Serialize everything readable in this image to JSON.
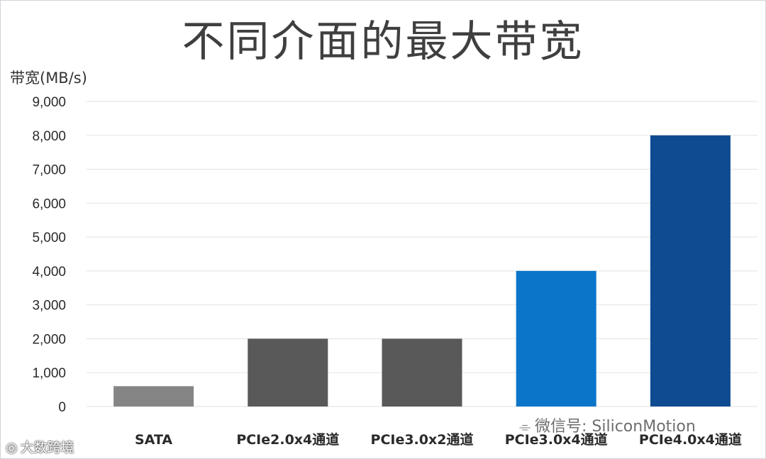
{
  "chart_data": {
    "type": "bar",
    "title": "不同介面的最大带宽",
    "ylabel": "带宽(MB/s)",
    "xlabel": "",
    "categories": [
      "SATA",
      "PCIe2.0x4通道",
      "PCIe3.0x2通道",
      "PCIe3.0x4通道",
      "PCIe4.0x4通道"
    ],
    "values": [
      600,
      2000,
      2000,
      4000,
      8000
    ],
    "bar_colors": [
      "#858585",
      "#595959",
      "#595959",
      "#0b75c9",
      "#0e4b91"
    ],
    "ylim": [
      0,
      9000
    ],
    "yticks": [
      0,
      1000,
      2000,
      3000,
      4000,
      5000,
      6000,
      7000,
      8000,
      9000
    ],
    "ytick_labels": [
      "0",
      "1,000",
      "2,000",
      "3,000",
      "4,000",
      "5,000",
      "6,000",
      "7,000",
      "8,000",
      "9,000"
    ],
    "grid": true,
    "legend": "none"
  },
  "watermarks": {
    "right_text": "微信号: SiliconMotion",
    "right_icon": "wechat-icon",
    "left_text": "大数跨境",
    "left_icon": "logo-mark"
  }
}
